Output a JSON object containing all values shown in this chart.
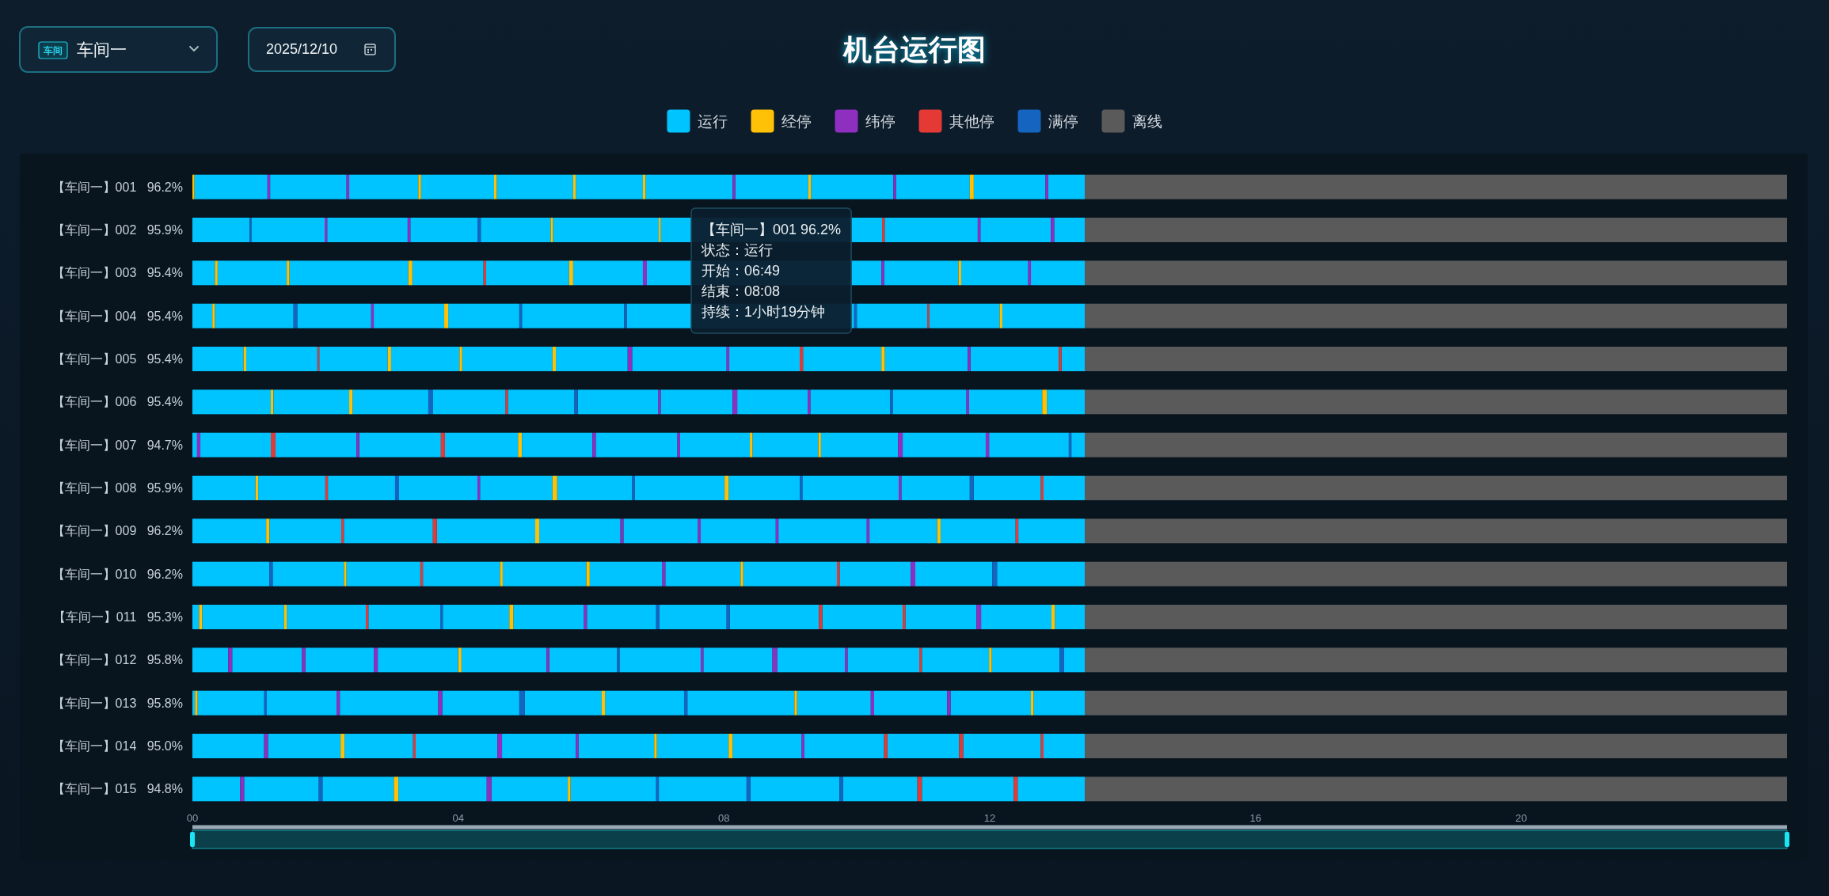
{
  "chart_data": {
    "type": "bar",
    "orientation": "horizontal",
    "title": "机台运行图",
    "legend": "top",
    "categories": [
      "【车间一】001   96.2%",
      "【车间一】002   95.9%",
      "【车间一】003   95.4%",
      "【车间一】004   95.4%",
      "【车间一】005   95.4%",
      "【车间一】006   95.4%",
      "【车间一】007   94.7%",
      "【车间一】008   95.9%",
      "【车间一】009   96.2%",
      "【车间一】010   96.2%",
      "【车间一】011   95.3%",
      "【车间一】012   95.8%",
      "【车间一】013   95.8%",
      "【车间一】014   95.0%",
      "【车间一】015   94.8%"
    ],
    "xlim": [
      0,
      24
    ],
    "xticks": [
      {
        "value": 0,
        "label": "00"
      },
      {
        "value": 4,
        "label": "04"
      },
      {
        "value": 8,
        "label": "08"
      },
      {
        "value": 12,
        "label": "12"
      },
      {
        "value": 16,
        "label": "16"
      },
      {
        "value": 20,
        "label": "20"
      }
    ],
    "annotations": [
      "车间",
      "车间一",
      "2025/12/10",
      "【车间一】001 96.2%",
      "状态：运行",
      "开始：06:49",
      "结束：08:08",
      "持续：1小时19分钟"
    ],
    "series": [
      {
        "name": "运行",
        "color": "#00c4ff",
        "base": [
          0.03,
          0,
          0,
          0,
          0,
          0,
          0,
          0,
          0,
          0,
          0,
          0,
          0,
          0,
          0
        ],
        "values": [
          1.1,
          0.86,
          0.34,
          0.3,
          0.77,
          1.18,
          0.07,
          0.95,
          1.11,
          1.16,
          0.1,
          0.54,
          0.04,
          1.08,
          0.72
        ]
      },
      {
        "name": "经停",
        "color": "#ffc107",
        "base": [
          0.0,
          5.39,
          0.34,
          0.3,
          0.77,
          1.18,
          4.9,
          0.95,
          1.11,
          2.28,
          0.1,
          4.0,
          0.04,
          2.23,
          3.03
        ],
        "values": [
          0.03,
          0.04,
          0.04,
          0.04,
          0.04,
          0.04,
          0.06,
          0.04,
          0.05,
          0.04,
          0.05,
          0.05,
          0.04,
          0.06,
          0.07
        ]
      },
      {
        "name": "纬停",
        "color": "#8e2fc0",
        "base": [
          1.13,
          1.99,
          6.78,
          2.69,
          6.55,
          7.01,
          0.07,
          4.29,
          6.44,
          7.07,
          5.89,
          0.54,
          2.17,
          1.08,
          0.72
        ],
        "values": [
          0.04,
          0.04,
          0.06,
          0.04,
          0.07,
          0.04,
          0.05,
          0.04,
          0.05,
          0.05,
          0.05,
          0.06,
          0.05,
          0.06,
          0.06
        ]
      },
      {
        "name": "其他停",
        "color": "#e53935",
        "base": [
          null,
          10.38,
          4.38,
          11.06,
          1.88,
          4.71,
          1.18,
          2.0,
          2.24,
          3.43,
          2.61,
          10.94,
          null,
          3.32,
          10.91
        ],
        "values": [
          null,
          0.04,
          0.04,
          0.03,
          0.03,
          0.04,
          0.07,
          0.04,
          0.04,
          0.04,
          0.04,
          0.04,
          null,
          0.04,
          0.07
        ]
      },
      {
        "name": "满停",
        "color": "#1565c0",
        "base": [
          null,
          0.86,
          null,
          1.52,
          null,
          3.55,
          13.19,
          3.05,
          null,
          1.16,
          3.73,
          6.39,
          1.08,
          null,
          1.9
        ],
        "values": [
          null,
          0.03,
          null,
          0.06,
          null,
          0.07,
          0.04,
          0.06,
          null,
          0.05,
          0.04,
          0.04,
          0.04,
          null,
          0.06
        ]
      },
      {
        "name": "离线",
        "color": "#5a5a5a",
        "base": [
          13.43,
          13.43,
          13.43,
          13.43,
          13.43,
          13.43,
          13.43,
          13.43,
          13.43,
          13.43,
          13.43,
          13.43,
          13.43,
          13.43,
          13.43
        ],
        "values": [
          10.57,
          10.57,
          10.57,
          10.57,
          10.57,
          10.57,
          10.57,
          10.57,
          10.57,
          10.57,
          10.57,
          10.57,
          10.57,
          10.57,
          10.57
        ]
      },
      {
        "color": "#00c4ff",
        "base": [
          1.17,
          0.89,
          0.38,
          0.34,
          0.81,
          1.22,
          0.12,
          0.99,
          1.16,
          1.21,
          0.15,
          0.6,
          0.08,
          1.14,
          0.78
        ],
        "values": [
          1.15,
          1.1,
          1.04,
          1.18,
          1.07,
          1.14,
          1.06,
          1.01,
          1.08,
          1.07,
          1.23,
          1.05,
          1.0,
          1.09,
          1.12
        ]
      },
      {
        "color": "#00c4ff",
        "base": [
          2.36,
          2.03,
          1.46,
          1.58,
          1.91,
          2.41,
          1.25,
          2.04,
          2.28,
          2.32,
          1.42,
          1.7,
          1.12,
          2.29,
          1.96
        ],
        "values": [
          1.04,
          1.21,
          1.79,
          1.11,
          1.03,
          1.14,
          1.22,
          1.01,
          1.34,
          1.11,
          1.19,
          1.03,
          1.05,
          1.03,
          1.07
        ]
      },
      {
        "color": "#00c4ff",
        "base": [
          3.44,
          3.28,
          3.31,
          2.73,
          2.99,
          3.62,
          2.51,
          3.11,
          3.68,
          3.47,
          2.65,
          2.79,
          2.22,
          3.36,
          3.1
        ],
        "values": [
          1.1,
          1.01,
          1.07,
          1.06,
          1.03,
          1.09,
          1.23,
          1.18,
          1.48,
          1.16,
          1.08,
          1.21,
          1.48,
          1.23,
          1.33
        ]
      },
      {
        "color": "#00c4ff",
        "base": [
          4.58,
          4.34,
          4.42,
          3.85,
          4.06,
          4.75,
          3.8,
          4.33,
          5.22,
          4.67,
          3.77,
          4.05,
          3.76,
          4.66,
          4.5
        ],
        "values": [
          1.15,
          1.05,
          1.25,
          1.07,
          1.36,
          1.0,
          1.1,
          1.09,
          1.22,
          1.26,
          1.0,
          1.28,
          1.16,
          1.11,
          1.15
        ]
      },
      {
        "color": "#00c4ff",
        "base": [
          5.77,
          5.43,
          5.73,
          4.96,
          5.47,
          5.8,
          4.96,
          5.49,
          6.49,
          5.98,
          4.83,
          5.37,
          5.0,
          5.81,
          5.69
        ],
        "values": [
          1.01,
          1.59,
          1.05,
          1.54,
          1.08,
          1.21,
          1.06,
          1.13,
          1.12,
          1.09,
          1.06,
          1.02,
          1.16,
          1.14,
          1.29
        ]
      },
      {
        "color": "#00c4ff",
        "base": [
          6.82,
          7.05,
          6.84,
          6.54,
          6.62,
          7.05,
          6.07,
          6.66,
          7.65,
          7.12,
          5.94,
          6.43,
          6.21,
          6.99,
          7.02
        ],
        "values": [
          1.31,
          3.33,
          3.53,
          3.42,
          1.42,
          1.08,
          1.23,
          1.35,
          1.13,
          1.13,
          1.04,
          1.22,
          1.19,
          1.08,
          1.32
        ]
      },
      {
        "color": "#00c4ff",
        "base": [
          8.17,
          10.42,
          10.41,
          10.0,
          8.08,
          8.2,
          7.34,
          8.07,
          8.82,
          8.29,
          7.03,
          7.69,
          7.45,
          8.13,
          8.4
        ],
        "values": [
          1.1,
          1.4,
          1.12,
          1.06,
          1.06,
          1.06,
          1.05,
          1.07,
          1.33,
          1.41,
          1.01,
          1.04,
          1.61,
          1.04,
          1.34
        ]
      },
      {
        "color": "#00c4ff",
        "base": [
          9.31,
          11.86,
          11.57,
          11.09,
          9.19,
          9.3,
          8.43,
          9.18,
          10.19,
          9.74,
          8.09,
          8.8,
          9.1,
          9.21,
          9.79
        ],
        "values": [
          1.24,
          1.06,
          1.01,
          1.06,
          1.18,
          1.2,
          0.99,
          1.45,
          1.02,
          1.07,
          1.34,
          1.02,
          1.11,
          1.2,
          1.12
        ]
      },
      {
        "color": "#00c4ff",
        "base": [
          10.59,
          12.97,
          12.62,
          12.19,
          10.42,
          10.54,
          9.46,
          10.67,
          11.26,
          10.88,
          9.48,
          9.86,
          10.26,
          10.46,
          10.98
        ],
        "values": [
          1.11,
          0.46,
          0.81,
          1.24,
          1.25,
          1.11,
          1.16,
          1.03,
          1.13,
          1.16,
          1.21,
          1.08,
          1.1,
          1.08,
          1.38
        ]
      },
      {
        "color": "#00c4ff",
        "base": [
          11.76,
          null,
          null,
          null,
          11.71,
          11.69,
          10.69,
          11.76,
          12.43,
          12.11,
          10.73,
          10.98,
          11.41,
          11.6,
          12.42
        ],
        "values": [
          1.08,
          null,
          null,
          null,
          1.33,
          1.1,
          1.25,
          1.01,
          1.0,
          1.32,
          1.07,
          1.01,
          1.21,
          1.17,
          1.01
        ]
      },
      {
        "color": "#00c4ff",
        "base": [
          12.88,
          null,
          null,
          null,
          13.08,
          12.86,
          11.99,
          12.81,
          null,
          null,
          11.87,
          12.03,
          12.66,
          12.81,
          null
        ],
        "values": [
          0.55,
          null,
          null,
          null,
          0.35,
          0.57,
          1.2,
          0.62,
          null,
          null,
          1.06,
          1.02,
          0.77,
          0.62,
          null
        ]
      },
      {
        "color": "#00c4ff",
        "base": [
          null,
          null,
          null,
          null,
          null,
          null,
          13.23,
          null,
          null,
          null,
          12.98,
          13.12,
          null,
          null,
          null
        ],
        "values": [
          null,
          null,
          null,
          null,
          null,
          null,
          0.2,
          null,
          null,
          null,
          0.45,
          0.31,
          null,
          null,
          null
        ]
      },
      {
        "color": "#ffc107",
        "base": [
          3.4,
          7.02,
          1.42,
          3.79,
          2.94,
          2.36,
          8.39,
          5.42,
          5.16,
          4.63,
          1.38,
          11.99,
          6.16,
          6.95,
          5.65
        ],
        "values": [
          0.04,
          0.03,
          0.04,
          0.06,
          0.05,
          0.05,
          0.04,
          0.07,
          0.06,
          0.04,
          0.04,
          0.04,
          0.05,
          0.04,
          0.04
        ]
      },
      {
        "color": "#ffc107",
        "base": [
          4.54,
          null,
          3.25,
          12.15,
          4.02,
          12.79,
          9.42,
          8.01,
          11.21,
          5.93,
          4.77,
          null,
          9.06,
          8.07,
          null
        ],
        "values": [
          0.04,
          null,
          0.06,
          0.04,
          0.04,
          0.07,
          0.04,
          0.06,
          0.05,
          0.05,
          0.06,
          null,
          0.04,
          0.06,
          null
        ]
      },
      {
        "color": "#ffc107",
        "base": [
          5.73,
          null,
          5.67,
          null,
          5.42,
          null,
          null,
          null,
          null,
          8.25,
          12.93,
          null,
          12.62,
          null,
          null
        ],
        "values": [
          0.04,
          null,
          0.06,
          null,
          0.05,
          null,
          null,
          null,
          null,
          0.04,
          0.05,
          null,
          0.04,
          null,
          null
        ]
      },
      {
        "color": "#ffc107",
        "base": [
          6.78,
          null,
          11.53,
          null,
          10.37,
          null,
          null,
          null,
          null,
          null,
          null,
          null,
          null,
          null,
          null
        ],
        "values": [
          0.04,
          null,
          0.04,
          null,
          0.05,
          null,
          null,
          null,
          null,
          null,
          null,
          null,
          null,
          null,
          null
        ]
      },
      {
        "color": "#ffc107",
        "base": [
          9.27,
          null,
          null,
          null,
          null,
          null,
          null,
          null,
          null,
          null,
          null,
          null,
          null,
          null,
          null
        ],
        "values": [
          0.04,
          null,
          null,
          null,
          null,
          null,
          null,
          null,
          null,
          null,
          null,
          null,
          null,
          null,
          null
        ]
      },
      {
        "color": "#ffc107",
        "base": [
          11.7,
          null,
          null,
          null,
          null,
          null,
          null,
          null,
          null,
          null,
          null,
          null,
          null,
          null,
          null
        ],
        "values": [
          0.06,
          null,
          null,
          null,
          null,
          null,
          null,
          null,
          null,
          null,
          null,
          null,
          null,
          null,
          null
        ]
      },
      {
        "color": "#8e2fc0",
        "base": [
          2.32,
          3.24,
          10.37,
          null,
          8.04,
          8.13,
          2.47,
          10.63,
          7.61,
          10.81,
          11.8,
          1.65,
          3.7,
          4.59,
          4.43
        ],
        "values": [
          0.04,
          0.04,
          0.04,
          null,
          0.04,
          0.07,
          0.04,
          0.04,
          0.04,
          0.07,
          0.07,
          0.05,
          0.06,
          0.07,
          0.07
        ]
      },
      {
        "color": "#8e2fc0",
        "base": [
          8.13,
          11.82,
          12.58,
          null,
          11.67,
          9.26,
          6.02,
          null,
          8.78,
          null,
          null,
          2.73,
          10.21,
          5.77,
          null
        ],
        "values": [
          0.04,
          0.04,
          0.04,
          null,
          0.04,
          0.04,
          0.05,
          null,
          0.04,
          null,
          null,
          0.06,
          0.05,
          0.04,
          null
        ]
      },
      {
        "color": "#8e2fc0",
        "base": [
          10.55,
          12.92,
          null,
          null,
          null,
          11.65,
          7.3,
          null,
          10.15,
          null,
          null,
          5.33,
          11.36,
          9.17,
          null
        ],
        "values": [
          0.04,
          0.05,
          null,
          null,
          null,
          0.04,
          0.04,
          null,
          0.04,
          null,
          null,
          0.04,
          0.05,
          0.04,
          null
        ]
      },
      {
        "color": "#8e2fc0",
        "base": [
          12.84,
          null,
          null,
          null,
          null,
          null,
          10.62,
          null,
          null,
          null,
          null,
          7.65,
          null,
          null,
          null
        ],
        "values": [
          0.04,
          null,
          null,
          null,
          null,
          null,
          0.07,
          null,
          null,
          null,
          null,
          0.04,
          null,
          null,
          null
        ]
      },
      {
        "color": "#8e2fc0",
        "base": [
          null,
          null,
          null,
          null,
          null,
          null,
          11.94,
          null,
          null,
          null,
          null,
          8.73,
          null,
          null,
          null
        ],
        "values": [
          null,
          null,
          null,
          null,
          null,
          null,
          0.05,
          null,
          null,
          null,
          null,
          0.07,
          null,
          null,
          null
        ]
      },
      {
        "color": "#8e2fc0",
        "base": [
          null,
          null,
          null,
          null,
          null,
          null,
          null,
          null,
          null,
          null,
          null,
          9.82,
          null,
          null,
          null
        ],
        "values": [
          null,
          null,
          null,
          null,
          null,
          null,
          null,
          null,
          null,
          null,
          null,
          0.04,
          null,
          null,
          null
        ]
      },
      {
        "color": "#e53935",
        "base": [
          null,
          null,
          null,
          null,
          9.14,
          null,
          3.74,
          12.77,
          3.62,
          9.7,
          9.43,
          null,
          null,
          10.41,
          12.36
        ],
        "values": [
          null,
          null,
          null,
          null,
          0.05,
          null,
          0.06,
          0.04,
          0.06,
          0.04,
          0.05,
          null,
          null,
          0.05,
          0.06
        ]
      },
      {
        "color": "#e53935",
        "base": [
          null,
          null,
          null,
          null,
          13.04,
          null,
          null,
          null,
          12.39,
          null,
          10.69,
          null,
          null,
          11.54,
          null
        ],
        "values": [
          null,
          null,
          null,
          null,
          0.04,
          null,
          null,
          null,
          0.04,
          null,
          0.04,
          null,
          null,
          0.06,
          null
        ]
      },
      {
        "color": "#e53935",
        "base": [
          null,
          null,
          null,
          null,
          null,
          null,
          null,
          null,
          null,
          null,
          null,
          null,
          null,
          12.77,
          null
        ],
        "values": [
          null,
          null,
          null,
          null,
          null,
          null,
          null,
          null,
          null,
          null,
          null,
          null,
          null,
          0.04,
          null
        ]
      },
      {
        "color": "#1565c0",
        "base": [
          null,
          4.29,
          null,
          4.92,
          null,
          5.75,
          null,
          6.62,
          null,
          12.04,
          6.98,
          13.05,
          4.92,
          null,
          6.98
        ],
        "values": [
          null,
          0.05,
          null,
          0.04,
          null,
          0.05,
          null,
          0.04,
          null,
          0.07,
          0.05,
          0.07,
          0.08,
          null,
          0.04
        ]
      },
      {
        "color": "#1565c0",
        "base": [
          null,
          null,
          null,
          6.5,
          null,
          10.5,
          null,
          9.14,
          null,
          null,
          8.04,
          null,
          7.4,
          null,
          8.34
        ],
        "values": [
          null,
          null,
          null,
          0.04,
          null,
          0.04,
          null,
          0.04,
          null,
          null,
          0.05,
          null,
          0.05,
          null,
          0.06
        ]
      },
      {
        "color": "#1565c0",
        "base": [
          null,
          null,
          null,
          9.96,
          null,
          null,
          null,
          11.7,
          null,
          null,
          null,
          null,
          null,
          null,
          9.74
        ],
        "values": [
          null,
          null,
          null,
          0.04,
          null,
          null,
          null,
          0.06,
          null,
          null,
          null,
          null,
          null,
          null,
          0.05
        ]
      }
    ]
  }
}
